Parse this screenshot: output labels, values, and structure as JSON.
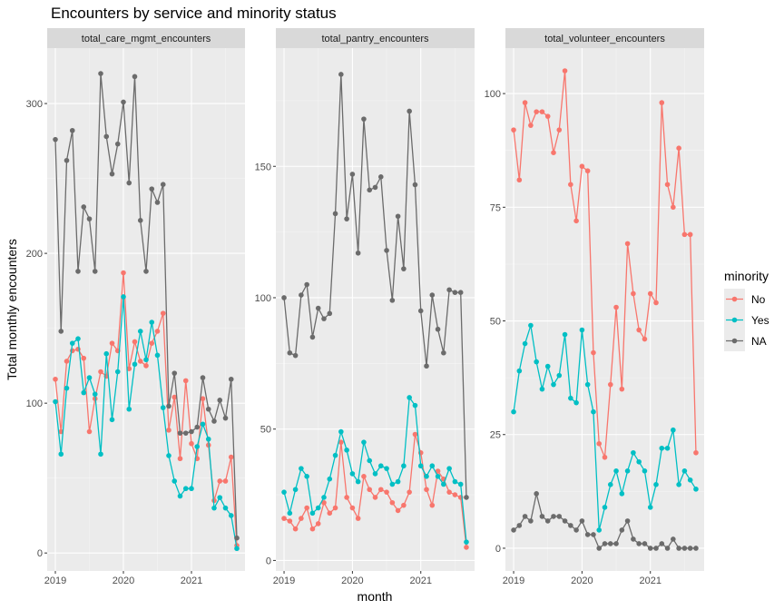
{
  "chart_data": {
    "type": "line",
    "title": "Encounters by service and minority status",
    "xlabel": "month",
    "ylabel": "Total monthly encounters",
    "x_tick_labels": [
      "2019",
      "2020",
      "2021"
    ],
    "x": [
      "2019-01",
      "2019-02",
      "2019-03",
      "2019-04",
      "2019-05",
      "2019-06",
      "2019-07",
      "2019-08",
      "2019-09",
      "2019-10",
      "2019-11",
      "2019-12",
      "2020-01",
      "2020-02",
      "2020-03",
      "2020-04",
      "2020-05",
      "2020-06",
      "2020-07",
      "2020-08",
      "2020-09",
      "2020-10",
      "2020-11",
      "2020-12",
      "2021-01",
      "2021-02",
      "2021-03",
      "2021-04",
      "2021-05",
      "2021-06",
      "2021-07",
      "2021-08",
      "2021-09"
    ],
    "legend": {
      "title": "minority",
      "position": "right",
      "entries": [
        {
          "label": "No",
          "color": "#F8766D"
        },
        {
          "label": "Yes",
          "color": "#00BFC4"
        },
        {
          "label": "NA",
          "color": "#6b6b6b"
        }
      ]
    },
    "facets": [
      {
        "strip": "total_care_mgmt_encounters",
        "ylim": [
          -12,
          337
        ],
        "y_ticks": [
          0,
          100,
          200,
          300
        ],
        "series": [
          {
            "name": "No",
            "values": [
              116,
              81,
              128,
              135,
              136,
              130,
              81,
              103,
              121,
              118,
              140,
              135,
              187,
              123,
              141,
              128,
              125,
              140,
              148,
              160,
              82,
              104,
              63,
              115,
              73,
              63,
              103,
              72,
              35,
              48,
              48,
              64,
              5
            ]
          },
          {
            "name": "Yes",
            "values": [
              101,
              66,
              110,
              140,
              143,
              107,
              117,
              106,
              66,
              133,
              89,
              121,
              171,
              96,
              126,
              148,
              129,
              154,
              132,
              97,
              65,
              48,
              38,
              43,
              43,
              71,
              86,
              76,
              30,
              37,
              30,
              25,
              3
            ]
          },
          {
            "name": "NA",
            "values": [
              276,
              148,
              262,
              282,
              188,
              231,
              223,
              188,
              320,
              278,
              253,
              273,
              301,
              247,
              318,
              222,
              188,
              243,
              234,
              246,
              98,
              120,
              80,
              80,
              81,
              84,
              117,
              96,
              88,
              102,
              90,
              116,
              10
            ]
          }
        ]
      },
      {
        "strip": "total_pantry_encounters",
        "ylim": [
          -4,
          195
        ],
        "y_ticks": [
          0,
          50,
          100,
          150
        ],
        "series": [
          {
            "name": "No",
            "values": [
              16,
              15,
              12,
              16,
              20,
              12,
              14,
              22,
              18,
              20,
              45,
              24,
              20,
              16,
              32,
              27,
              24,
              27,
              26,
              22,
              19,
              21,
              26,
              48,
              41,
              27,
              21,
              34,
              31,
              26,
              25,
              24,
              5
            ]
          },
          {
            "name": "Yes",
            "values": [
              26,
              18,
              27,
              35,
              32,
              18,
              20,
              24,
              31,
              40,
              49,
              42,
              33,
              30,
              45,
              38,
              33,
              36,
              35,
              29,
              30,
              36,
              62,
              59,
              36,
              32,
              36,
              32,
              29,
              35,
              30,
              29,
              7
            ]
          },
          {
            "name": "NA",
            "values": [
              100,
              79,
              78,
              101,
              105,
              85,
              96,
              92,
              94,
              132,
              185,
              130,
              147,
              117,
              168,
              141,
              142,
              146,
              118,
              99,
              131,
              111,
              171,
              143,
              95,
              74,
              101,
              88,
              79,
              103,
              102,
              102,
              24
            ]
          }
        ]
      },
      {
        "strip": "total_volunteer_encounters",
        "ylim": [
          -5,
          110
        ],
        "y_ticks": [
          0,
          25,
          50,
          75,
          100
        ],
        "series": [
          {
            "name": "No",
            "values": [
              92,
              81,
              98,
              93,
              96,
              96,
              95,
              87,
              92,
              105,
              80,
              72,
              84,
              83,
              43,
              23,
              20,
              36,
              53,
              35,
              67,
              56,
              48,
              46,
              56,
              54,
              98,
              80,
              75,
              88,
              69,
              69,
              21
            ]
          },
          {
            "name": "Yes",
            "values": [
              30,
              39,
              45,
              49,
              41,
              35,
              40,
              36,
              38,
              47,
              33,
              32,
              48,
              36,
              30,
              4,
              9,
              14,
              17,
              12,
              17,
              21,
              19,
              17,
              9,
              14,
              22,
              22,
              26,
              14,
              17,
              15,
              13
            ]
          },
          {
            "name": "NA",
            "values": [
              4,
              5,
              7,
              6,
              12,
              7,
              6,
              7,
              7,
              6,
              5,
              4,
              6,
              3,
              3,
              0,
              1,
              1,
              1,
              4,
              6,
              2,
              1,
              1,
              0,
              0,
              1,
              0,
              2,
              0,
              0,
              0,
              0
            ]
          }
        ]
      }
    ]
  }
}
